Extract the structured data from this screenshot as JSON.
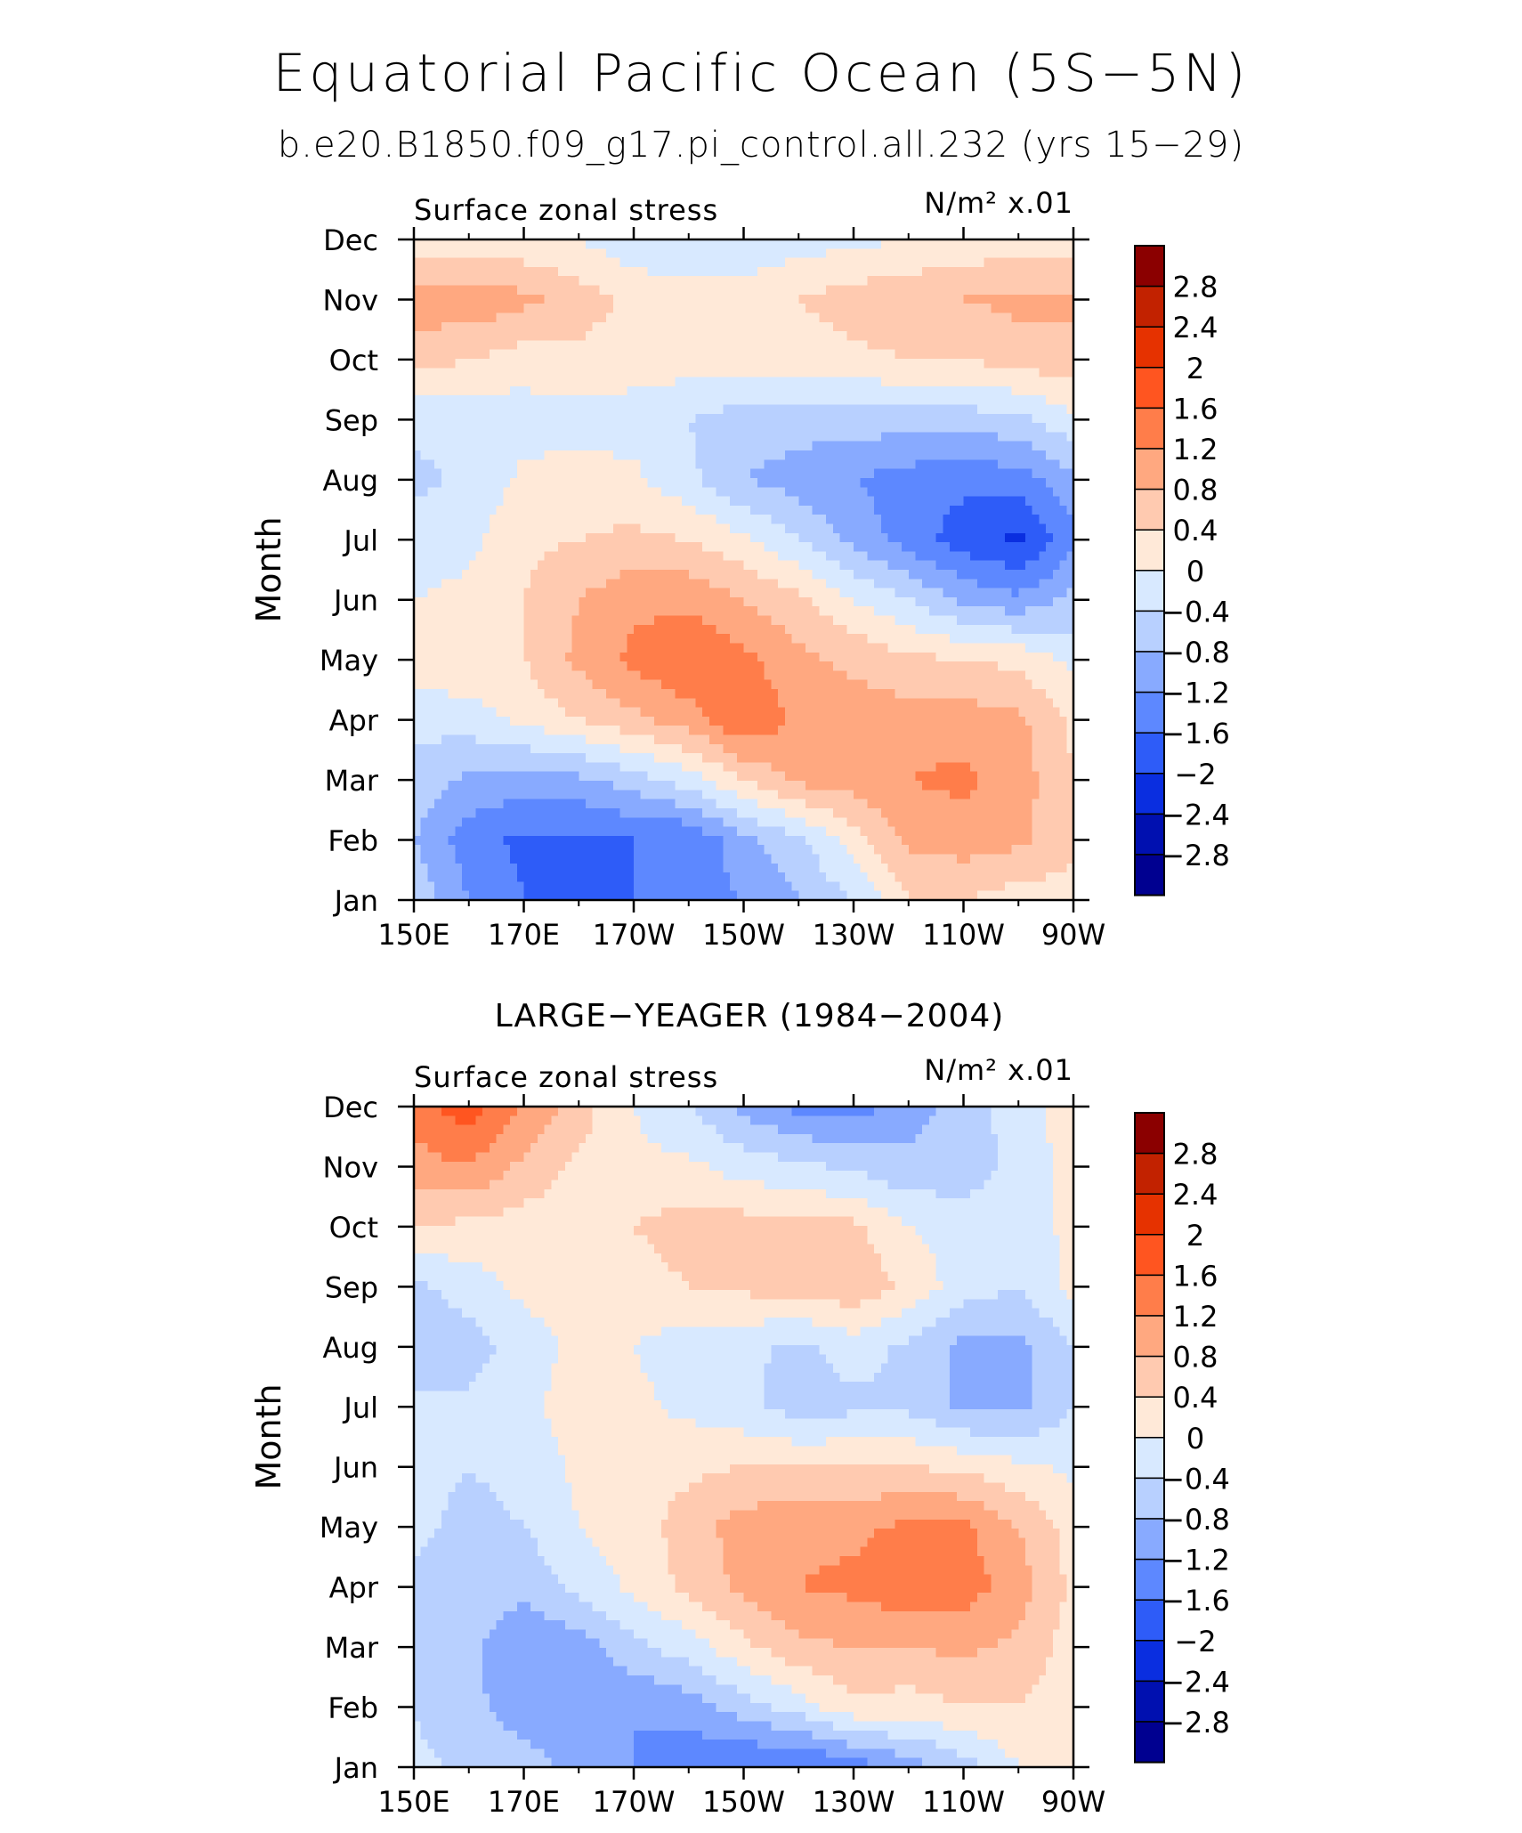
{
  "header": {
    "title": "Equatorial Pacific Ocean (5S−5N)",
    "subtitle": "b.e20.B1850.f09_g17.pi_control.all.232 (yrs 15−29)"
  },
  "colorbar": {
    "levels": [
      -2.8,
      -2.4,
      -2,
      -1.6,
      -1.2,
      -0.8,
      -0.4,
      0,
      0.4,
      0.8,
      1.2,
      1.6,
      2,
      2.4,
      2.8
    ],
    "labels": [
      "2.8",
      "2.4",
      "2",
      "1.6",
      "1.2",
      "0.8",
      "0.4",
      "0",
      "−0.4",
      "−0.8",
      "−1.2",
      "−1.6",
      "−2",
      "−2.4",
      "−2.8"
    ],
    "colors_top_to_bottom": [
      "#8b0000",
      "#c22200",
      "#e63200",
      "#ff5520",
      "#ff7d4a",
      "#ffa880",
      "#ffcab0",
      "#ffe9d8",
      "#d8e9ff",
      "#b8d0ff",
      "#88aaff",
      "#5d88ff",
      "#2e5cf8",
      "#0a2ee0",
      "#0010b0",
      "#000090"
    ]
  },
  "chart_data": [
    {
      "type": "heatmap",
      "title": "",
      "left_label": "Surface zonal stress",
      "units": "N/m² x.01",
      "xlabel": "",
      "ylabel": "Month",
      "x_ticks": [
        "150E",
        "170E",
        "170W",
        "150W",
        "130W",
        "110W",
        "90W"
      ],
      "y_ticks": [
        "Jan",
        "Feb",
        "Mar",
        "Apr",
        "May",
        "Jun",
        "Jul",
        "Aug",
        "Sep",
        "Oct",
        "Nov",
        "Dec"
      ],
      "xlim_deg_east": [
        150,
        270
      ],
      "z": [
        [
          -0.5,
          -1.2,
          -1.6,
          -1.6,
          -1.6,
          -1.4,
          -1.2,
          -0.8,
          -0.4,
          0.4,
          0.4,
          0.2,
          0.2
        ],
        [
          -0.8,
          -1.4,
          -1.7,
          -1.7,
          -1.6,
          -1.6,
          -0.9,
          -0.5,
          0.2,
          0.9,
          1.0,
          0.9,
          0.5
        ],
        [
          -0.5,
          -0.9,
          -1.0,
          -0.9,
          -0.6,
          -0.2,
          0.4,
          0.9,
          1.0,
          1.2,
          1.3,
          1.0,
          0.4
        ],
        [
          -0.3,
          -0.2,
          0.1,
          0.4,
          0.7,
          1.0,
          1.6,
          1.1,
          1.0,
          1.0,
          1.0,
          0.9,
          0.3
        ],
        [
          0.3,
          0.3,
          0.4,
          0.9,
          1.3,
          1.6,
          1.3,
          0.9,
          0.7,
          0.5,
          0.4,
          0.3,
          -0.1
        ],
        [
          0.0,
          0.1,
          0.4,
          0.8,
          1.1,
          1.1,
          0.8,
          0.5,
          0.0,
          -0.4,
          -0.9,
          -1.1,
          -0.7
        ],
        [
          -0.2,
          -0.1,
          0.3,
          0.4,
          0.5,
          0.4,
          0.1,
          -0.4,
          -0.9,
          -1.4,
          -1.8,
          -2.1,
          -1.3
        ],
        [
          -0.5,
          -0.3,
          0.1,
          0.2,
          0.1,
          -0.3,
          -0.8,
          -1.0,
          -1.2,
          -1.4,
          -1.5,
          -1.4,
          -0.9
        ],
        [
          -0.3,
          -0.3,
          -0.2,
          -0.2,
          -0.2,
          -0.4,
          -0.6,
          -0.6,
          -0.6,
          -0.6,
          -0.6,
          -0.5,
          -0.1
        ],
        [
          0.6,
          0.4,
          0.2,
          0.3,
          0.2,
          0.2,
          0.2,
          0.2,
          0.3,
          0.4,
          0.4,
          0.6,
          0.6
        ],
        [
          1.0,
          1.1,
          0.9,
          0.6,
          0.3,
          0.2,
          0.2,
          0.4,
          0.6,
          0.7,
          0.8,
          0.9,
          0.9
        ],
        [
          0.1,
          0.1,
          0.1,
          0.0,
          -0.3,
          -0.4,
          -0.3,
          -0.2,
          -0.1,
          0.0,
          0.1,
          0.2,
          0.2
        ]
      ]
    },
    {
      "type": "heatmap",
      "title": "LARGE−YEAGER (1984−2004)",
      "left_label": "Surface zonal stress",
      "units": "N/m² x.01",
      "xlabel": "",
      "ylabel": "Month",
      "x_ticks": [
        "150E",
        "170E",
        "170W",
        "150W",
        "130W",
        "110W",
        "90W"
      ],
      "y_ticks": [
        "Jan",
        "Feb",
        "Mar",
        "Apr",
        "May",
        "Jun",
        "Jul",
        "Aug",
        "Sep",
        "Oct",
        "Nov",
        "Dec"
      ],
      "xlim_deg_east": [
        150,
        270
      ],
      "z": [
        [
          -0.3,
          -0.5,
          -0.6,
          -1.0,
          -1.2,
          -1.5,
          -1.6,
          -1.7,
          -1.4,
          -1.0,
          -0.6,
          0.0,
          0.1
        ],
        [
          -0.4,
          -0.7,
          -1.0,
          -1.1,
          -1.2,
          -1.0,
          -0.6,
          -0.2,
          0.3,
          0.2,
          0.4,
          0.4,
          0.2
        ],
        [
          -0.5,
          -0.7,
          -1.1,
          -1.0,
          -0.5,
          -0.2,
          0.3,
          0.7,
          0.8,
          0.8,
          0.9,
          0.7,
          0.2
        ],
        [
          -0.5,
          -0.6,
          -0.7,
          -0.3,
          0.1,
          0.5,
          0.9,
          1.2,
          1.3,
          1.5,
          1.4,
          1.0,
          0.3
        ],
        [
          -0.3,
          -0.5,
          -0.4,
          0.0,
          0.2,
          0.6,
          1.0,
          1.1,
          1.1,
          1.3,
          1.3,
          0.8,
          0.2
        ],
        [
          -0.3,
          -0.4,
          -0.3,
          0.1,
          0.2,
          0.3,
          0.4,
          0.4,
          0.4,
          0.4,
          0.3,
          0.1,
          -0.1
        ],
        [
          -0.3,
          -0.3,
          -0.1,
          0.2,
          0.1,
          -0.1,
          -0.3,
          -0.6,
          -0.5,
          -0.5,
          -0.9,
          -0.9,
          -0.4
        ],
        [
          -0.8,
          -0.6,
          -0.2,
          0.1,
          0.0,
          -0.2,
          -0.3,
          -0.5,
          -0.2,
          -0.5,
          -0.9,
          -0.9,
          -0.4
        ],
        [
          -0.5,
          -0.2,
          0.1,
          0.2,
          0.2,
          0.4,
          0.5,
          0.6,
          0.7,
          0.3,
          -0.2,
          -0.4,
          0.1
        ],
        [
          0.4,
          0.3,
          0.2,
          0.2,
          0.4,
          0.6,
          0.6,
          0.5,
          0.5,
          0.0,
          -0.2,
          -0.2,
          0.1
        ],
        [
          1.0,
          1.2,
          0.7,
          0.3,
          0.1,
          0.1,
          -0.2,
          -0.3,
          -0.5,
          -0.7,
          -0.6,
          -0.3,
          0.2
        ],
        [
          1.5,
          1.8,
          1.2,
          0.6,
          0.0,
          -0.4,
          -0.9,
          -1.3,
          -1.4,
          -1.0,
          -0.6,
          -0.2,
          0.2
        ]
      ]
    }
  ]
}
